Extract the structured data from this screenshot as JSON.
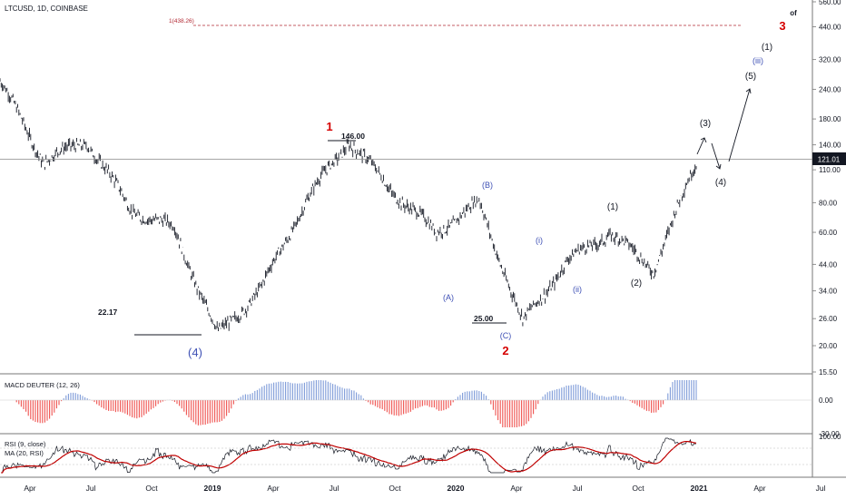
{
  "header": {
    "symbol_label": "LTCUSD, 1D, COINBASE"
  },
  "price_axis": {
    "ticks": [
      "560.00",
      "440.00",
      "320.00",
      "240.00",
      "180.00",
      "140.00",
      "110.00",
      "80.00",
      "60.00",
      "44.00",
      "34.00",
      "26.00",
      "20.00",
      "15.50"
    ],
    "current_price": "121.01"
  },
  "time_axis": {
    "labels": [
      "Apr",
      "Jul",
      "Oct",
      "2019",
      "Apr",
      "Jul",
      "Oct",
      "2020",
      "Apr",
      "Jul",
      "Oct",
      "2021",
      "Apr",
      "Jul"
    ]
  },
  "colors": {
    "candles": "#131722",
    "wave_red": "#d50000",
    "wave_blue": "#3f51b5",
    "target_line": "#b22833",
    "macd_pos": "#7e9bd8",
    "macd_neg": "#ef5350",
    "rsi_line": "#131722",
    "rsi_ma": "#c00000"
  },
  "annotations": {
    "target_label": "1(438.26)",
    "price_146": "146.00",
    "price_22": "22.17",
    "price_25": "25.00",
    "wave_1": "1",
    "wave_2": "2",
    "wave_3": "3",
    "wave_of": "of",
    "wave_4_major": "(4)",
    "wave_A": "(A)",
    "wave_B": "(B)",
    "wave_C": "(C)",
    "wave_i": "(i)",
    "wave_ii": "(ii)",
    "wave_iii": "(iii)",
    "wave_1p": "(1)",
    "wave_2p": "(2)",
    "wave_3p": "(3)",
    "wave_4p": "(4)",
    "wave_5p": "(5)",
    "wave_1p_top": "(1)"
  },
  "macd": {
    "label": "MACD DEUTER (12, 26)",
    "ticks": [
      "0.00",
      "-30.00"
    ]
  },
  "rsi": {
    "label": "RSI (9, close)",
    "ma_label": "MA (20, RSI)",
    "ticks": [
      "100.00"
    ]
  },
  "chart_data": {
    "type": "line",
    "title": "LTCUSD, 1D, COINBASE",
    "scale": "log",
    "ylim": [
      15.5,
      560
    ],
    "x": [
      "2018-02",
      "2018-04",
      "2018-06",
      "2018-08",
      "2018-10",
      "2018-12",
      "2019-02",
      "2019-04",
      "2019-06",
      "2019-08",
      "2019-10",
      "2020-01",
      "2020-03",
      "2020-05",
      "2020-08",
      "2020-10",
      "2020-12"
    ],
    "series": [
      {
        "values": [
          260,
          120,
          145,
          75,
          62,
          22.17,
          35,
          80,
          146,
          90,
          60,
          80,
          25,
          45,
          60,
          42,
          121
        ]
      }
    ],
    "key_levels": [
      438.26,
      146.0,
      22.17,
      25.0,
      121.01
    ]
  }
}
